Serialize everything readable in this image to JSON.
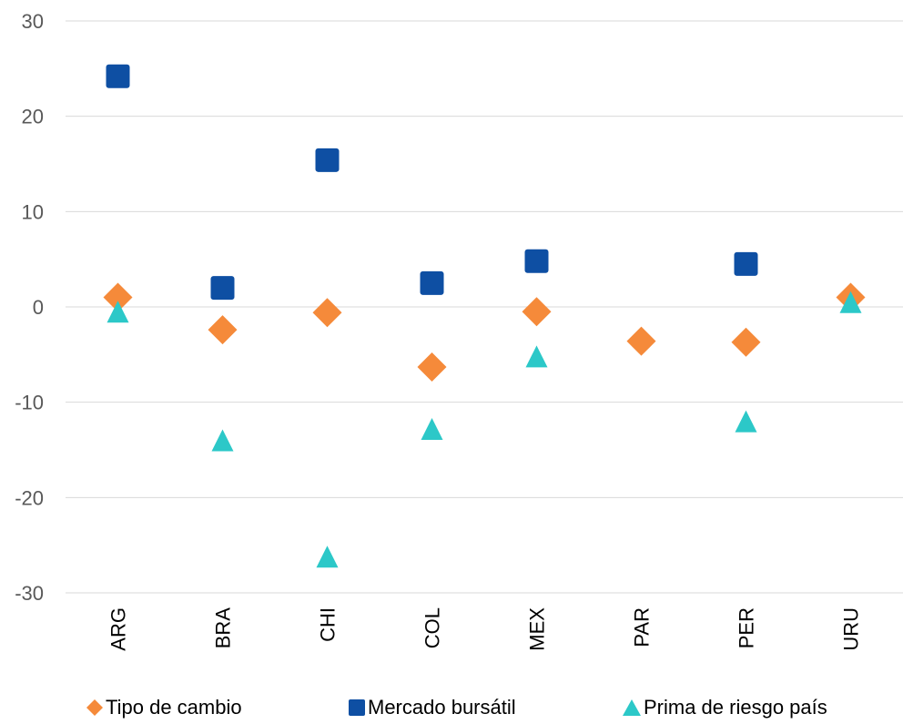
{
  "chart_data": {
    "type": "scatter",
    "categories": [
      "ARG",
      "BRA",
      "CHI",
      "COL",
      "MEX",
      "PAR",
      "PER",
      "URU"
    ],
    "ylim": [
      -30,
      30
    ],
    "yticks": [
      30,
      20,
      10,
      0,
      -10,
      -20,
      -30
    ],
    "grid": true,
    "legend_position": "bottom",
    "series": [
      {
        "name": "Tipo de cambio",
        "marker": "diamond",
        "color": "#F58A3A",
        "values": [
          1.0,
          -2.4,
          -0.6,
          -6.3,
          -0.5,
          -3.6,
          -3.7,
          1.0
        ]
      },
      {
        "name": "Mercado bursátil",
        "marker": "square",
        "color": "#0E4FA3",
        "values": [
          24.2,
          2.0,
          15.4,
          2.5,
          4.8,
          null,
          4.5,
          null
        ]
      },
      {
        "name": "Prima de riesgo país",
        "marker": "triangle",
        "color": "#2CC8C8",
        "values": [
          -0.5,
          -14.0,
          -26.2,
          -12.8,
          -5.2,
          null,
          -12.0,
          0.5
        ]
      }
    ]
  }
}
